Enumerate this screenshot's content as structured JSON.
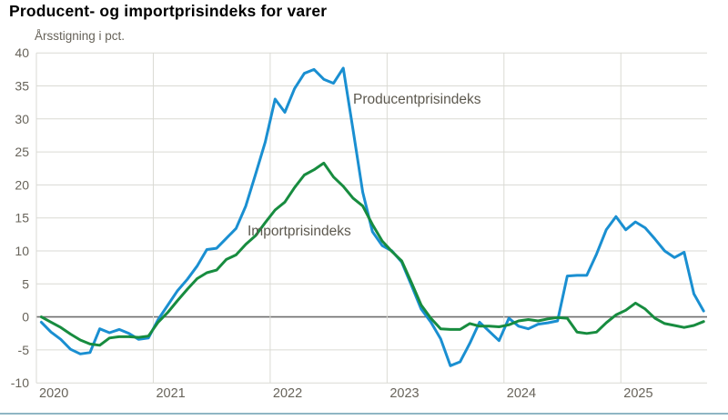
{
  "title": "Producent- og importprisindeks for varer",
  "colors": {
    "producer_line": "#1a8fd1",
    "import_line": "#178c3f",
    "grid": "#dadad4",
    "zero_line": "#6e6e6e",
    "axis_text": "#67635a",
    "annotation_text": "#5c584e",
    "bottom_rule": "#8fb6c4"
  },
  "chart_data": {
    "type": "line",
    "title": "Producent- og importprisindeks for varer",
    "ylabel": "Årsstigning i pct.",
    "frequency": "monthly",
    "x_start": "2020-01",
    "x_end": "2025-09",
    "x_tick_labels": [
      "2020",
      "2021",
      "2022",
      "2023",
      "2024",
      "2025"
    ],
    "ylim": [
      -10,
      40
    ],
    "y_ticks": [
      40,
      35,
      30,
      25,
      20,
      15,
      10,
      5,
      0,
      -5,
      -10
    ],
    "grid": true,
    "legend_position": "inline-annotations",
    "series": [
      {
        "name": "Producentprisindeks",
        "color": "#1a8fd1",
        "values": [
          -0.8,
          -2.3,
          -3.4,
          -4.9,
          -5.6,
          -5.4,
          -1.8,
          -2.4,
          -1.9,
          -2.5,
          -3.4,
          -3.2,
          -0.4,
          1.8,
          4.0,
          5.7,
          7.7,
          10.2,
          10.4,
          11.9,
          13.4,
          16.8,
          21.6,
          26.5,
          33.0,
          31.0,
          34.6,
          36.9,
          37.5,
          36.0,
          35.4,
          37.7,
          28.4,
          18.9,
          12.9,
          10.8,
          10.0,
          8.3,
          4.8,
          1.2,
          -0.8,
          -3.3,
          -7.4,
          -6.8,
          -4.0,
          -0.8,
          -2.2,
          -3.6,
          -0.2,
          -1.4,
          -1.8,
          -1.1,
          -0.9,
          -0.6,
          6.2,
          6.3,
          6.3,
          9.5,
          13.2,
          15.2,
          13.2,
          14.4,
          13.5,
          11.8,
          10.0,
          9.0,
          9.8,
          3.5,
          0.9
        ]
      },
      {
        "name": "Importprisindeks",
        "color": "#178c3f",
        "values": [
          0.0,
          -0.8,
          -1.6,
          -2.6,
          -3.5,
          -4.1,
          -4.3,
          -3.2,
          -3.0,
          -3.0,
          -3.1,
          -2.9,
          -0.8,
          0.7,
          2.5,
          4.2,
          5.8,
          6.7,
          7.1,
          8.7,
          9.4,
          11.0,
          12.3,
          14.3,
          16.2,
          17.4,
          19.6,
          21.5,
          22.3,
          23.3,
          21.2,
          19.8,
          18.0,
          16.8,
          14.0,
          11.5,
          9.9,
          8.5,
          5.2,
          1.8,
          -0.2,
          -1.8,
          -1.9,
          -1.9,
          -1.0,
          -1.4,
          -1.4,
          -1.5,
          -1.2,
          -0.6,
          -0.4,
          -0.6,
          -0.3,
          -0.1,
          -0.2,
          -2.3,
          -2.5,
          -2.3,
          -0.9,
          0.3,
          1.0,
          2.1,
          1.2,
          -0.2,
          -1.0,
          -1.3,
          -1.6,
          -1.3,
          -0.7
        ]
      }
    ]
  }
}
